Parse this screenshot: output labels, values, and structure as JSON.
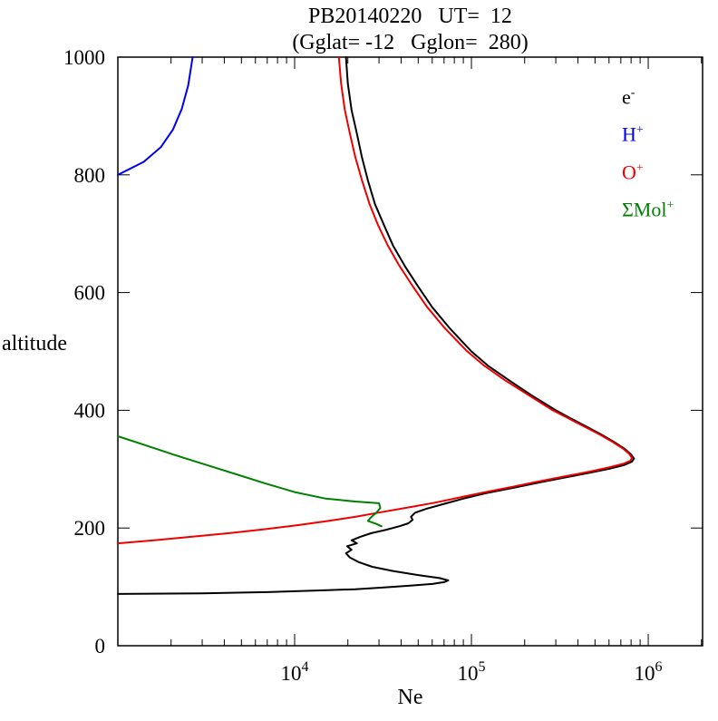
{
  "title": {
    "line1": "PB20140220   UT=  12",
    "line2": "(Gglat= -12   Gglon=  280)"
  },
  "axes": {
    "y_label": "altitude",
    "x_label": "Ne"
  },
  "chart_data": {
    "type": "line",
    "title": "PB20140220   UT=  12",
    "subtitle": "(Gglat= -12   Gglon=  280)",
    "xlabel": "Ne",
    "ylabel": "altitude",
    "x_scale": "log",
    "grid": false,
    "legend_position": "top-right-inside",
    "xlim": [
      1000,
      2030000
    ],
    "ylim": [
      0,
      1000
    ],
    "x_major_ticks": [
      10000,
      100000,
      1000000
    ],
    "y_ticks": [
      0,
      200,
      400,
      600,
      800,
      1000
    ],
    "series": [
      {
        "name": "e-",
        "label_base": "e",
        "label_sup": "-",
        "color": "#000000",
        "points": [
          [
            1000,
            88
          ],
          [
            3000,
            89
          ],
          [
            7000,
            91
          ],
          [
            14000,
            94
          ],
          [
            22000,
            96
          ],
          [
            32000,
            99
          ],
          [
            45000,
            102
          ],
          [
            60000,
            105
          ],
          [
            70000,
            108
          ],
          [
            74000,
            111
          ],
          [
            66000,
            115
          ],
          [
            50000,
            120
          ],
          [
            36000,
            127
          ],
          [
            27500,
            134
          ],
          [
            23000,
            142
          ],
          [
            20500,
            150
          ],
          [
            19500,
            157
          ],
          [
            21000,
            163
          ],
          [
            19800,
            169
          ],
          [
            22500,
            174
          ],
          [
            21000,
            179
          ],
          [
            23500,
            185
          ],
          [
            27000,
            191
          ],
          [
            33000,
            197
          ],
          [
            39000,
            203
          ],
          [
            44000,
            208
          ],
          [
            46500,
            214
          ],
          [
            45500,
            219
          ],
          [
            48000,
            226
          ],
          [
            56000,
            233
          ],
          [
            70000,
            241
          ],
          [
            90000,
            250
          ],
          [
            120000,
            259
          ],
          [
            170000,
            268
          ],
          [
            240000,
            277
          ],
          [
            340000,
            286
          ],
          [
            470000,
            294
          ],
          [
            610000,
            301
          ],
          [
            730000,
            307
          ],
          [
            810000,
            313
          ],
          [
            830000,
            318
          ],
          [
            800000,
            325
          ],
          [
            740000,
            334
          ],
          [
            650000,
            345
          ],
          [
            550000,
            358
          ],
          [
            450000,
            372
          ],
          [
            360000,
            387
          ],
          [
            300000,
            400
          ],
          [
            220000,
            425
          ],
          [
            165000,
            450
          ],
          [
            125000,
            475
          ],
          [
            100000,
            500
          ],
          [
            75000,
            540
          ],
          [
            60000,
            575
          ],
          [
            50000,
            610
          ],
          [
            42000,
            645
          ],
          [
            36000,
            680
          ],
          [
            32000,
            715
          ],
          [
            28500,
            750
          ],
          [
            26000,
            790
          ],
          [
            24000,
            830
          ],
          [
            22500,
            870
          ],
          [
            21000,
            910
          ],
          [
            20000,
            955
          ],
          [
            19500,
            1000
          ]
        ]
      },
      {
        "name": "H+",
        "label_base": "H",
        "label_sup": "+",
        "color": "#0000ee",
        "points": [
          [
            1000,
            800
          ],
          [
            1400,
            822
          ],
          [
            1750,
            847
          ],
          [
            2050,
            877
          ],
          [
            2300,
            912
          ],
          [
            2500,
            952
          ],
          [
            2650,
            1000
          ]
        ]
      },
      {
        "name": "O+",
        "label_base": "O",
        "label_sup": "+",
        "color": "#ee0000",
        "points": [
          [
            1000,
            174
          ],
          [
            1600,
            179
          ],
          [
            2600,
            185
          ],
          [
            4200,
            191
          ],
          [
            6800,
            198
          ],
          [
            10500,
            205
          ],
          [
            15500,
            212
          ],
          [
            22000,
            219
          ],
          [
            31000,
            227
          ],
          [
            44000,
            235
          ],
          [
            62000,
            243
          ],
          [
            86000,
            252
          ],
          [
            120000,
            261
          ],
          [
            170000,
            270
          ],
          [
            240000,
            279
          ],
          [
            340000,
            288
          ],
          [
            470000,
            296
          ],
          [
            600000,
            303
          ],
          [
            720000,
            309
          ],
          [
            790000,
            314
          ],
          [
            810000,
            319
          ],
          [
            780000,
            326
          ],
          [
            720000,
            335
          ],
          [
            630000,
            346
          ],
          [
            530000,
            359
          ],
          [
            430000,
            373
          ],
          [
            350000,
            387
          ],
          [
            285000,
            401
          ],
          [
            210000,
            426
          ],
          [
            155000,
            451
          ],
          [
            118000,
            476
          ],
          [
            94000,
            501
          ],
          [
            70000,
            541
          ],
          [
            56000,
            576
          ],
          [
            46500,
            611
          ],
          [
            39000,
            646
          ],
          [
            33500,
            681
          ],
          [
            29500,
            716
          ],
          [
            26500,
            751
          ],
          [
            24000,
            791
          ],
          [
            22000,
            831
          ],
          [
            20500,
            871
          ],
          [
            19200,
            911
          ],
          [
            18300,
            956
          ],
          [
            17800,
            1000
          ]
        ]
      },
      {
        "name": "ΣMol+",
        "label_base": "ΣMol",
        "label_sup": "+",
        "color": "#008000",
        "points": [
          [
            1000,
            356
          ],
          [
            1450,
            340
          ],
          [
            2100,
            324
          ],
          [
            3100,
            308
          ],
          [
            4600,
            292
          ],
          [
            6800,
            276
          ],
          [
            10000,
            261
          ],
          [
            15000,
            250
          ],
          [
            22000,
            245
          ],
          [
            30000,
            242
          ],
          [
            30500,
            234
          ],
          [
            29000,
            226
          ],
          [
            27000,
            218
          ],
          [
            26000,
            212
          ],
          [
            29000,
            207
          ],
          [
            31000,
            203
          ]
        ]
      }
    ]
  }
}
